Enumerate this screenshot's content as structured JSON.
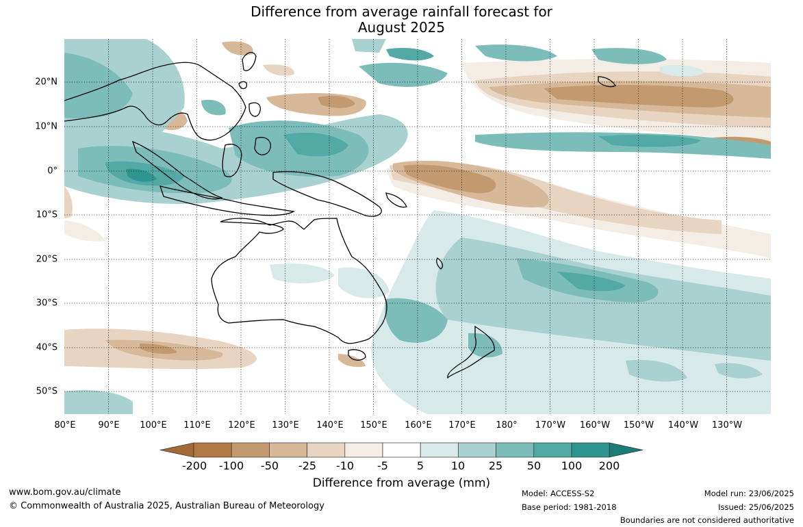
{
  "title": {
    "line1": "Difference from average rainfall forecast for",
    "line2": "August 2025"
  },
  "map": {
    "lon_labels": [
      "80°E",
      "90°E",
      "100°E",
      "110°E",
      "120°E",
      "130°E",
      "140°E",
      "150°E",
      "160°E",
      "170°E",
      "180°",
      "170°W",
      "160°W",
      "150°W",
      "140°W",
      "130°W"
    ],
    "lat_labels": [
      "20°N",
      "10°N",
      "0°",
      "10°S",
      "20°S",
      "30°S",
      "40°S",
      "50°S"
    ],
    "gridlines": "dotted",
    "region": "Australia, Indonesia and western-central Pacific"
  },
  "colorbar": {
    "title": "Difference from average (mm)",
    "tick_labels": [
      "-200",
      "-100",
      "-50",
      "-25",
      "-10",
      "-5",
      "5",
      "10",
      "25",
      "50",
      "100",
      "200"
    ],
    "colors": [
      "#a26a34",
      "#b27a45",
      "#c39a6f",
      "#d7b898",
      "#e7d5c2",
      "#f3ede6",
      "#ffffff",
      "#d7e9e8",
      "#a8d1cf",
      "#7cbdb9",
      "#52a9a5",
      "#2f9590",
      "#1b7d78"
    ],
    "extend": "both"
  },
  "footer": {
    "url": "www.bom.gov.au/climate",
    "copyright": "© Commonwealth of Australia 2025, Australian Bureau of Meteorology",
    "model": "Model: ACCESS-S2",
    "base_period": "Base period: 1981-2018",
    "model_run": "Model run: 23/06/2025",
    "issued": "Issued: 25/06/2025",
    "disclaimer": "Boundaries are not considered authoritative"
  }
}
